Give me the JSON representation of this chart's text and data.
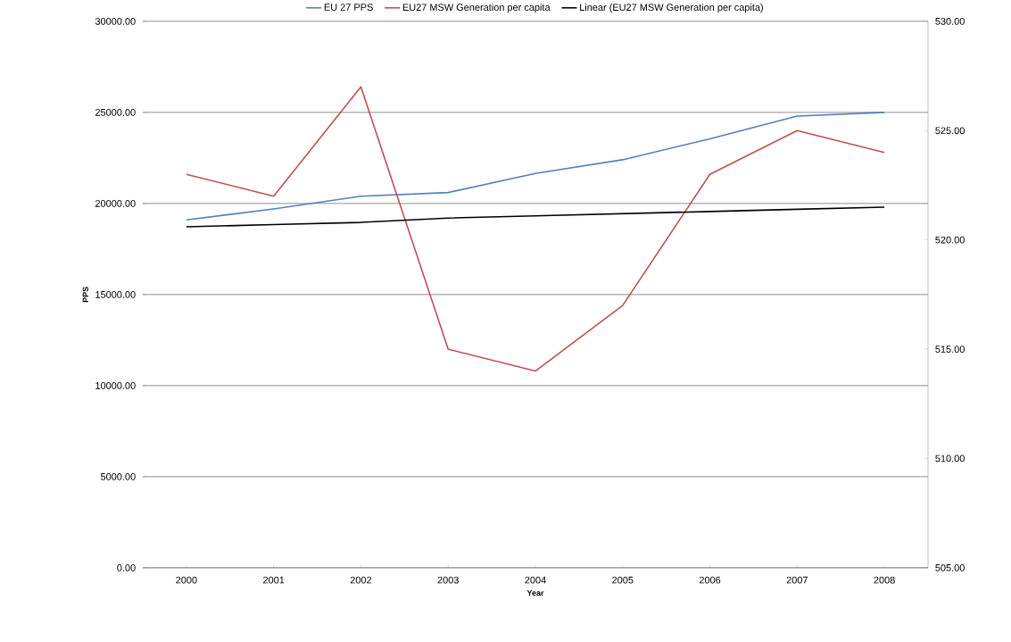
{
  "chart_data": {
    "type": "line",
    "categories": [
      "2000",
      "2001",
      "2002",
      "2003",
      "2004",
      "2005",
      "2006",
      "2007",
      "2008"
    ],
    "xlabel": "Year",
    "ylabel": "PPS",
    "ylim": [
      0,
      30000
    ],
    "yticks": [
      {
        "value": 0,
        "label": "0.00"
      },
      {
        "value": 5000,
        "label": "5000.00"
      },
      {
        "value": 10000,
        "label": "10000.00"
      },
      {
        "value": 15000,
        "label": "15000.00"
      },
      {
        "value": 20000,
        "label": "20000.00"
      },
      {
        "value": 25000,
        "label": "25000.00"
      },
      {
        "value": 30000,
        "label": "30000.00"
      }
    ],
    "y2lim": [
      505,
      530
    ],
    "y2ticks": [
      {
        "value": 505,
        "label": "505.00"
      },
      {
        "value": 510,
        "label": "510.00"
      },
      {
        "value": 515,
        "label": "515.00"
      },
      {
        "value": 520,
        "label": "520.00"
      },
      {
        "value": 525,
        "label": "525.00"
      },
      {
        "value": 530,
        "label": "530.00"
      }
    ],
    "grid": "y",
    "legend": "top",
    "marker": "none",
    "line_style": "solid",
    "series": [
      {
        "name": "EU 27 PPS",
        "color": "#4f81bd",
        "values": [
          19100,
          19700,
          20400,
          20600,
          21650,
          22400,
          23550,
          24800,
          25000
        ]
      },
      {
        "name": "EU27 MSW Generation per capita",
        "color": "#c0504d",
        "axis": "y2",
        "values": [
          523,
          522,
          527,
          515,
          514,
          517,
          523,
          525,
          524
        ]
      },
      {
        "name": "Linear (EU27 MSW Generation per capita)",
        "color": "#000000",
        "axis": "y2",
        "values": [
          520.6,
          520.7,
          520.8,
          521.0,
          521.1,
          521.2,
          521.3,
          521.4,
          521.5
        ]
      }
    ]
  }
}
